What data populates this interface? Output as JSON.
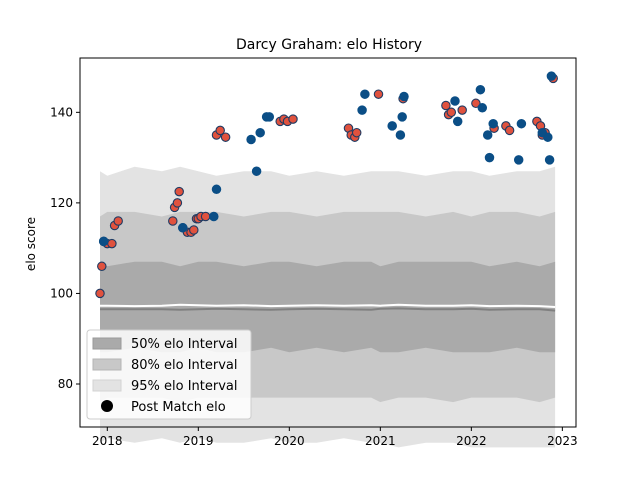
{
  "chart_data": {
    "type": "scatter",
    "title": "Darcy Graham: elo History",
    "xlabel": "",
    "ylabel": "elo score",
    "xlim": [
      2017.7,
      2023.15
    ],
    "ylim": [
      70.5,
      152
    ],
    "x_ticks": [
      2018,
      2019,
      2020,
      2021,
      2022,
      2023
    ],
    "x_tick_labels": [
      "2018",
      "2019",
      "2020",
      "2021",
      "2022",
      "2023"
    ],
    "y_ticks": [
      80,
      100,
      120,
      140
    ],
    "y_tick_labels": [
      "80",
      "100",
      "120",
      "140"
    ],
    "grid": false,
    "legend_position": "lower-left",
    "colors": {
      "band50": "#aaaaaa",
      "band80": "#c8c8c8",
      "band95": "#e3e3e3",
      "median_line": "#808080",
      "mean_line": "#ffffff",
      "win_point": "#e0523e",
      "loss_point": "#0b4e86",
      "point_edge": "#1f3b63"
    },
    "legend": [
      {
        "label": "50% elo Interval",
        "kind": "band50"
      },
      {
        "label": "80% elo Interval",
        "kind": "band80"
      },
      {
        "label": "95% elo Interval",
        "kind": "band95"
      },
      {
        "label": "Post Match elo",
        "kind": "marker"
      }
    ],
    "bands": {
      "x": [
        2017.92,
        2018.0,
        2018.3,
        2018.6,
        2018.8,
        2019.0,
        2019.2,
        2019.5,
        2019.8,
        2020.0,
        2020.3,
        2020.6,
        2020.9,
        2021.0,
        2021.2,
        2021.5,
        2021.8,
        2022.0,
        2022.2,
        2022.5,
        2022.75,
        2022.92
      ],
      "low95": [
        67,
        68,
        67,
        68,
        67,
        68,
        67,
        67,
        68,
        67,
        67,
        68,
        67,
        67,
        66,
        67,
        67,
        66,
        66,
        66,
        66,
        66
      ],
      "high95": [
        127,
        126,
        128,
        127,
        128,
        127,
        126,
        127,
        127,
        126,
        127,
        126,
        127,
        127,
        127,
        126,
        127,
        127,
        126,
        127,
        127,
        128
      ],
      "low80": [
        76,
        77,
        77,
        77,
        76,
        77,
        77,
        77,
        77,
        77,
        77,
        77,
        77,
        76,
        77,
        77,
        76,
        77,
        77,
        77,
        76,
        77
      ],
      "high80": [
        117,
        118,
        118,
        117,
        118,
        118,
        118,
        117,
        118,
        118,
        117,
        118,
        118,
        118,
        118,
        117,
        118,
        117,
        118,
        118,
        117,
        118
      ],
      "low50": [
        87,
        87,
        88,
        87,
        87,
        88,
        87,
        87,
        88,
        87,
        88,
        87,
        88,
        87,
        87,
        88,
        87,
        87,
        87,
        88,
        87,
        87
      ],
      "high50": [
        107,
        106,
        107,
        107,
        106,
        107,
        107,
        106,
        107,
        107,
        106,
        107,
        107,
        106,
        107,
        107,
        107,
        107,
        106,
        107,
        106,
        107
      ],
      "median": [
        96.5,
        96.5,
        96.5,
        96.5,
        96.4,
        96.5,
        96.6,
        96.5,
        96.4,
        96.5,
        96.6,
        96.5,
        96.4,
        96.6,
        96.7,
        96.5,
        96.5,
        96.6,
        96.4,
        96.5,
        96.5,
        96.2
      ],
      "mean": [
        97.3,
        97.3,
        97.2,
        97.3,
        97.5,
        97.4,
        97.3,
        97.4,
        97.2,
        97.3,
        97.4,
        97.3,
        97.4,
        97.3,
        97.5,
        97.3,
        97.3,
        97.4,
        97.2,
        97.3,
        97.2,
        97.0
      ]
    },
    "series": [
      {
        "result": "win",
        "x": [
          2017.92,
          2017.94,
          2017.96,
          2018.0,
          2018.05,
          2018.08,
          2018.12,
          2018.72,
          2018.74,
          2018.77,
          2018.79,
          2018.83,
          2018.88,
          2018.92,
          2018.95,
          2018.98,
          2019.0,
          2019.03,
          2019.08,
          2019.2,
          2019.24,
          2019.3,
          2019.9,
          2019.94,
          2019.98,
          2020.04,
          2020.65,
          2020.68,
          2020.72,
          2020.74,
          2020.98,
          2021.25,
          2021.72,
          2021.75,
          2021.78,
          2021.9,
          2022.05,
          2022.25,
          2022.38,
          2022.42,
          2022.72,
          2022.76,
          2022.78,
          2022.81,
          2022.9
        ],
        "y": [
          100,
          106,
          111.5,
          111,
          111,
          115,
          116,
          116,
          119,
          120,
          122.5,
          114.5,
          113.5,
          113.5,
          114,
          116.5,
          116.5,
          117,
          117,
          135,
          136,
          134.5,
          138,
          138.5,
          138,
          138.5,
          136.5,
          135,
          134.5,
          135.5,
          144,
          143,
          141.5,
          139.5,
          140,
          140.5,
          142,
          136.5,
          137,
          136,
          138,
          137,
          135,
          135.5,
          147.5
        ]
      },
      {
        "result": "loss",
        "x": [
          2017.96,
          2018.83,
          2019.17,
          2019.2,
          2019.58,
          2019.64,
          2019.68,
          2019.75,
          2019.78,
          2020.8,
          2020.83,
          2021.13,
          2021.22,
          2021.24,
          2021.26,
          2021.82,
          2021.85,
          2022.1,
          2022.12,
          2022.18,
          2022.2,
          2022.24,
          2022.52,
          2022.55,
          2022.78,
          2022.84,
          2022.86,
          2022.88
        ],
        "y": [
          111.5,
          114.5,
          117,
          123,
          134,
          127,
          135.5,
          139,
          139,
          140.5,
          144,
          137,
          135,
          139,
          143.5,
          142.5,
          138,
          145,
          141,
          135,
          130,
          137.5,
          129.5,
          137.5,
          135.5,
          134.5,
          129.5,
          148
        ]
      }
    ]
  }
}
